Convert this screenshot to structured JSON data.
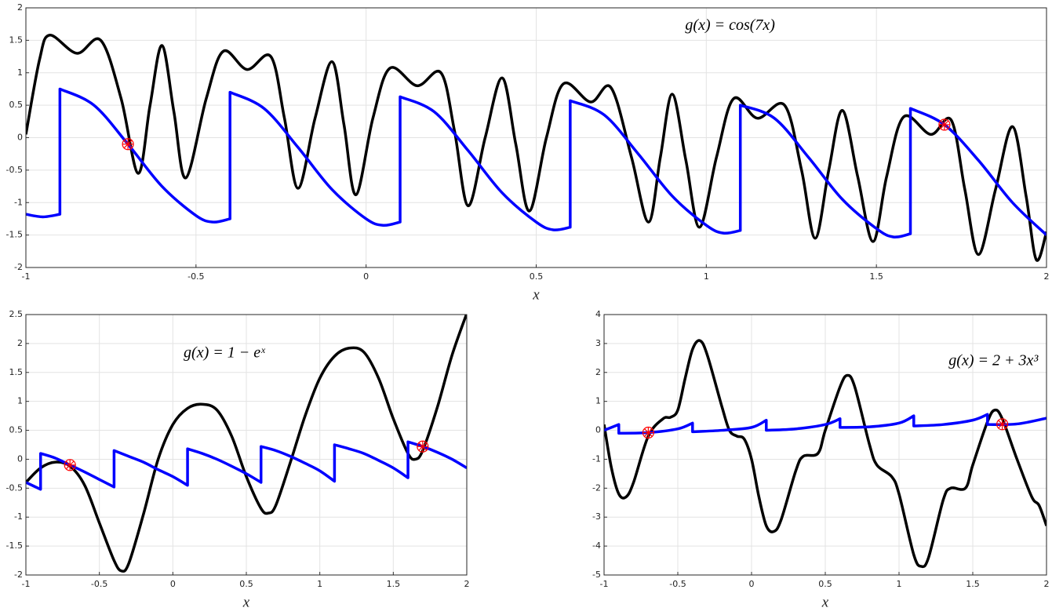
{
  "chart_data": [
    {
      "type": "line",
      "annotation": "g(x) = cos(7x)",
      "xlabel": "x",
      "xlim": [
        -1,
        2
      ],
      "xticks": [
        -1,
        -0.5,
        0,
        0.5,
        1,
        1.5,
        2
      ],
      "ylim": [
        -2,
        2
      ],
      "yticks": [
        -2,
        -1.5,
        -1,
        -0.5,
        0,
        0.5,
        1,
        1.5,
        2
      ],
      "grid": true,
      "series": [
        {
          "color": "#000000",
          "x": [
            -1,
            -0.96,
            -0.93,
            -0.85,
            -0.78,
            -0.72,
            -0.67,
            -0.635,
            -0.6,
            -0.565,
            -0.53,
            -0.47,
            -0.42,
            -0.35,
            -0.28,
            -0.24,
            -0.2,
            -0.15,
            -0.1,
            -0.065,
            -0.03,
            0.02,
            0.07,
            0.15,
            0.22,
            0.26,
            0.3,
            0.35,
            0.4,
            0.44,
            0.48,
            0.53,
            0.58,
            0.66,
            0.72,
            0.78,
            0.83,
            0.865,
            0.9,
            0.94,
            0.98,
            1.03,
            1.08,
            1.15,
            1.23,
            1.28,
            1.32,
            1.36,
            1.4,
            1.445,
            1.49,
            1.53,
            1.58,
            1.66,
            1.72,
            1.76,
            1.8,
            1.85,
            1.9,
            1.94,
            1.97,
            2
          ],
          "values": [
            0.05,
            1.2,
            1.58,
            1.3,
            1.5,
            0.6,
            -0.55,
            0.5,
            1.42,
            0.4,
            -0.62,
            0.6,
            1.33,
            1.05,
            1.25,
            0.3,
            -0.78,
            0.3,
            1.17,
            0.2,
            -0.88,
            0.3,
            1.07,
            0.8,
            1.0,
            0.1,
            -1.05,
            0.0,
            0.92,
            -0.1,
            -1.13,
            0.0,
            0.83,
            0.55,
            0.77,
            -0.3,
            -1.3,
            -0.3,
            0.67,
            -0.35,
            -1.38,
            -0.3,
            0.6,
            0.3,
            0.5,
            -0.5,
            -1.55,
            -0.5,
            0.42,
            -0.6,
            -1.6,
            -0.6,
            0.32,
            0.05,
            0.27,
            -0.8,
            -1.8,
            -0.8,
            0.17,
            -0.9,
            -1.88,
            -1.45
          ]
        },
        {
          "color": "#0000ff",
          "x": [
            -1,
            -0.95,
            -0.9,
            -0.9,
            -0.8,
            -0.7,
            -0.6,
            -0.5,
            -0.45,
            -0.4,
            -0.4,
            -0.3,
            -0.2,
            -0.1,
            0,
            0.05,
            0.1,
            0.1,
            0.2,
            0.3,
            0.4,
            0.5,
            0.55,
            0.6,
            0.6,
            0.7,
            0.8,
            0.9,
            1,
            1.05,
            1.1,
            1.1,
            1.2,
            1.3,
            1.4,
            1.5,
            1.55,
            1.6,
            1.6,
            1.7,
            1.8,
            1.9,
            2
          ],
          "values": [
            -1.18,
            -1.22,
            -1.18,
            0.75,
            0.5,
            -0.1,
            -0.75,
            -1.2,
            -1.3,
            -1.25,
            0.7,
            0.45,
            -0.15,
            -0.8,
            -1.25,
            -1.35,
            -1.3,
            0.63,
            0.4,
            -0.2,
            -0.85,
            -1.3,
            -1.42,
            -1.38,
            0.57,
            0.35,
            -0.25,
            -0.9,
            -1.35,
            -1.47,
            -1.43,
            0.5,
            0.3,
            -0.3,
            -0.95,
            -1.4,
            -1.53,
            -1.48,
            0.45,
            0.2,
            -0.35,
            -1.0,
            -1.5
          ]
        }
      ],
      "points": {
        "color": "#ff0000",
        "x": [
          -0.7,
          1.7
        ],
        "values": [
          -0.1,
          0.2
        ]
      }
    },
    {
      "type": "line",
      "annotation": "g(x) = 1 − eˣ",
      "xlabel": "x",
      "xlim": [
        -1,
        2
      ],
      "xticks": [
        -1,
        -0.5,
        0,
        0.5,
        1,
        1.5,
        2
      ],
      "ylim": [
        -2,
        2.5
      ],
      "yticks": [
        -2,
        -1.5,
        -1,
        -0.5,
        0,
        0.5,
        1,
        1.5,
        2,
        2.5
      ],
      "grid": true,
      "series": [
        {
          "color": "#000000",
          "x": [
            -1,
            -0.9,
            -0.8,
            -0.7,
            -0.6,
            -0.5,
            -0.4,
            -0.35,
            -0.3,
            -0.2,
            -0.1,
            0,
            0.1,
            0.2,
            0.3,
            0.4,
            0.5,
            0.6,
            0.65,
            0.7,
            0.8,
            0.9,
            1,
            1.1,
            1.2,
            1.3,
            1.4,
            1.5,
            1.6,
            1.65,
            1.7,
            1.8,
            1.9,
            2
          ],
          "values": [
            -0.4,
            -0.15,
            -0.05,
            -0.12,
            -0.45,
            -1.1,
            -1.75,
            -1.93,
            -1.8,
            -0.95,
            0.0,
            0.6,
            0.88,
            0.95,
            0.85,
            0.4,
            -0.3,
            -0.85,
            -0.93,
            -0.8,
            -0.05,
            0.75,
            1.4,
            1.78,
            1.92,
            1.85,
            1.4,
            0.7,
            0.1,
            0.0,
            0.15,
            0.9,
            1.8,
            2.52
          ]
        },
        {
          "color": "#0000ff",
          "x": [
            -1,
            -0.9,
            -0.9,
            -0.8,
            -0.7,
            -0.6,
            -0.5,
            -0.4,
            -0.4,
            -0.3,
            -0.2,
            -0.1,
            0,
            0.1,
            0.1,
            0.2,
            0.3,
            0.4,
            0.5,
            0.6,
            0.6,
            0.7,
            0.8,
            0.9,
            1,
            1.1,
            1.1,
            1.2,
            1.3,
            1.4,
            1.5,
            1.6,
            1.6,
            1.7,
            1.8,
            1.9,
            2
          ],
          "values": [
            -0.4,
            -0.52,
            0.1,
            0.02,
            -0.1,
            -0.22,
            -0.35,
            -0.48,
            0.15,
            0.05,
            -0.05,
            -0.18,
            -0.3,
            -0.45,
            0.18,
            0.1,
            0.0,
            -0.12,
            -0.25,
            -0.4,
            0.22,
            0.15,
            0.05,
            -0.07,
            -0.2,
            -0.38,
            0.25,
            0.18,
            0.1,
            -0.02,
            -0.15,
            -0.32,
            0.3,
            0.22,
            0.12,
            0.0,
            -0.15
          ]
        }
      ],
      "points": {
        "color": "#ff0000",
        "x": [
          -0.7,
          1.7
        ],
        "values": [
          -0.1,
          0.22
        ]
      }
    },
    {
      "type": "line",
      "annotation": "g(x) = 2 + 3x³",
      "xlabel": "x",
      "xlim": [
        -1,
        2
      ],
      "xticks": [
        -1,
        -0.5,
        0,
        0.5,
        1,
        1.5,
        2
      ],
      "ylim": [
        -5,
        4
      ],
      "yticks": [
        -5,
        -4,
        -3,
        -2,
        -1,
        0,
        1,
        2,
        3,
        4
      ],
      "grid": true,
      "series": [
        {
          "color": "#000000",
          "x": [
            -1,
            -0.95,
            -0.9,
            -0.85,
            -0.8,
            -0.7,
            -0.6,
            -0.55,
            -0.5,
            -0.45,
            -0.4,
            -0.35,
            -0.3,
            -0.2,
            -0.15,
            -0.1,
            -0.05,
            0,
            0.05,
            0.1,
            0.15,
            0.2,
            0.3,
            0.35,
            0.45,
            0.5,
            0.6,
            0.65,
            0.7,
            0.8,
            0.85,
            0.95,
            1,
            1.1,
            1.15,
            1.2,
            1.3,
            1.35,
            1.45,
            1.5,
            1.6,
            1.65,
            1.7,
            1.8,
            1.9,
            1.95,
            2
          ],
          "values": [
            0.2,
            -1.3,
            -2.2,
            -2.3,
            -1.8,
            -0.2,
            0.4,
            0.45,
            0.7,
            1.8,
            2.8,
            3.1,
            2.6,
            0.8,
            0.0,
            -0.2,
            -0.3,
            -1.0,
            -2.3,
            -3.3,
            -3.5,
            -3.1,
            -1.4,
            -0.9,
            -0.8,
            0.0,
            1.5,
            1.9,
            1.5,
            -0.5,
            -1.2,
            -1.6,
            -2.2,
            -4.3,
            -4.7,
            -4.4,
            -2.4,
            -2.0,
            -2.0,
            -1.2,
            0.3,
            0.7,
            0.4,
            -1.0,
            -2.3,
            -2.6,
            -3.3
          ]
        },
        {
          "color": "#0000ff",
          "x": [
            -1,
            -0.9,
            -0.9,
            -0.7,
            -0.5,
            -0.4,
            -0.4,
            -0.2,
            0,
            0.1,
            0.1,
            0.3,
            0.5,
            0.6,
            0.6,
            0.8,
            1,
            1.1,
            1.1,
            1.3,
            1.5,
            1.6,
            1.6,
            1.8,
            2
          ],
          "values": [
            0.0,
            0.2,
            -0.1,
            -0.08,
            0.05,
            0.25,
            -0.05,
            0.0,
            0.1,
            0.35,
            0.0,
            0.05,
            0.2,
            0.4,
            0.1,
            0.12,
            0.25,
            0.5,
            0.15,
            0.2,
            0.35,
            0.55,
            0.2,
            0.22,
            0.42
          ]
        }
      ],
      "points": {
        "color": "#ff0000",
        "x": [
          -0.7,
          1.7
        ],
        "values": [
          -0.08,
          0.21
        ]
      }
    }
  ]
}
